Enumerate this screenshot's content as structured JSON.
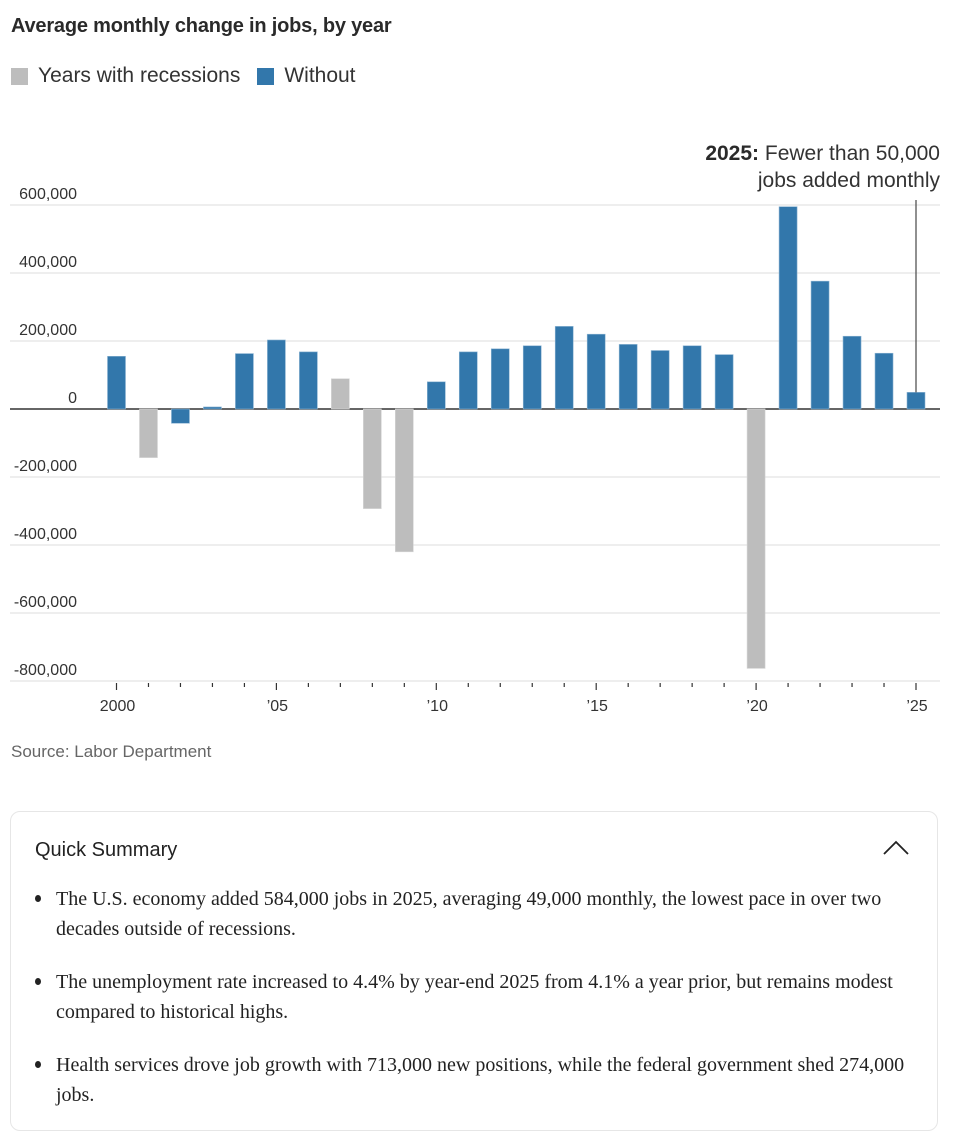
{
  "chart_data": {
    "type": "bar",
    "title": "Average monthly change in jobs, by year",
    "xlabel": "",
    "ylabel": "",
    "ylim": [
      -800000,
      600000
    ],
    "yticks": [
      600000,
      400000,
      200000,
      0,
      -200000,
      -400000,
      -600000,
      -800000
    ],
    "ytick_labels": [
      "600,000",
      "400,000",
      "200,000",
      "0",
      "-200,000",
      "-400,000",
      "-600,000",
      "-800,000"
    ],
    "xtick_labels": [
      {
        "year": 2000,
        "label": "2000"
      },
      {
        "year": 2005,
        "label": "’05"
      },
      {
        "year": 2010,
        "label": "’10"
      },
      {
        "year": 2015,
        "label": "’15"
      },
      {
        "year": 2020,
        "label": "’20"
      },
      {
        "year": 2025,
        "label": "’25"
      }
    ],
    "grid": true,
    "legend": {
      "position": "top-left",
      "entries": [
        {
          "name": "Years with recessions",
          "color": "#bdbdbd"
        },
        {
          "name": "Without",
          "color": "#3277ab"
        }
      ]
    },
    "categories": [
      2000,
      2001,
      2002,
      2003,
      2004,
      2005,
      2006,
      2007,
      2008,
      2009,
      2010,
      2011,
      2012,
      2013,
      2014,
      2015,
      2016,
      2017,
      2018,
      2019,
      2020,
      2021,
      2022,
      2023,
      2024,
      2025
    ],
    "values": [
      155000,
      -143000,
      -42000,
      6000,
      163000,
      203000,
      168000,
      89000,
      -293000,
      -420000,
      80000,
      168000,
      177000,
      186000,
      243000,
      220000,
      190000,
      172000,
      186000,
      160000,
      -763000,
      595000,
      376000,
      214000,
      164000,
      49000
    ],
    "recession": [
      false,
      true,
      false,
      false,
      false,
      false,
      false,
      true,
      true,
      true,
      false,
      false,
      false,
      false,
      false,
      false,
      false,
      false,
      false,
      false,
      true,
      false,
      false,
      false,
      false,
      false
    ],
    "annotation": {
      "year": 2025,
      "bold": "2025:",
      "text_line1": "Fewer than 50,000",
      "text_line2": "jobs added monthly"
    }
  },
  "colors": {
    "recession": "#bdbdbd",
    "without": "#3277ab",
    "grid": "#e4e4e4",
    "zero": "#333333"
  },
  "source": "Source: Labor Department",
  "summary": {
    "title": "Quick Summary",
    "toggle_icon": "chevron-up-icon",
    "bullets": [
      "The U.S. economy added 584,000 jobs in 2025, averaging 49,000 monthly, the lowest pace in over two decades outside of recessions.",
      "The unemployment rate increased to 4.4% by year-end 2025 from 4.1% a year prior, but remains modest compared to historical highs.",
      "Health services drove job growth with 713,000 new positions, while the federal government shed 274,000 jobs."
    ]
  }
}
